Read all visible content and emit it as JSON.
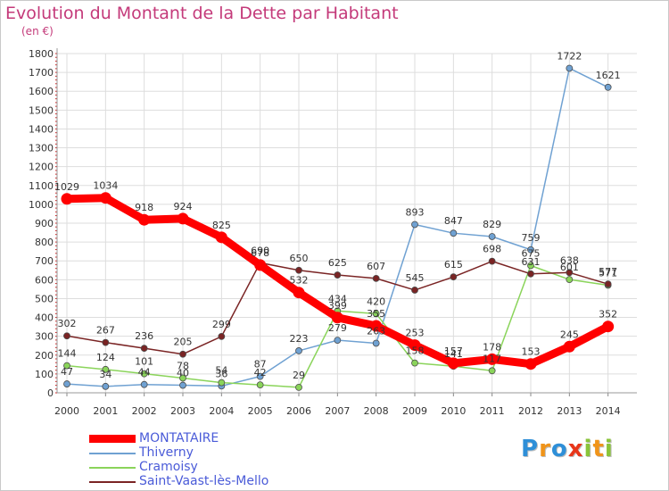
{
  "colors": {
    "title": "#c43a7a",
    "axis_text": "#333333",
    "grid": "#dddddd",
    "tick_minor": "#cc2222",
    "legend_text": "#4a5bd8"
  },
  "chart_data": {
    "type": "line",
    "title": "Evolution du Montant de la Dette par Habitant",
    "subtitle": "(en €)",
    "xlabel": "",
    "ylabel": "",
    "x": [
      "2000",
      "2001",
      "2002",
      "2003",
      "2004",
      "2005",
      "2006",
      "2007",
      "2008",
      "2009",
      "2010",
      "2011",
      "2012",
      "2013",
      "2014"
    ],
    "ylim": [
      0,
      1800
    ],
    "y_ticks": [
      0,
      100,
      200,
      300,
      400,
      500,
      600,
      700,
      800,
      900,
      1000,
      1100,
      1200,
      1300,
      1400,
      1500,
      1600,
      1700,
      1800
    ],
    "grid": true,
    "legend_position": "bottom-left",
    "series": [
      {
        "name": "MONTATAIRE",
        "color": "#ff0000",
        "values": [
          1029,
          1034,
          918,
          924,
          825,
          678,
          532,
          399,
          355,
          253,
          157,
          178,
          153,
          245,
          352
        ],
        "labels": [
          "1029",
          "1034",
          "918",
          "924",
          "825",
          "678",
          "532",
          "399",
          "355",
          "253",
          "157",
          "178",
          "153",
          "245",
          "352"
        ]
      },
      {
        "name": "Thiverny",
        "color": "#6fa1d2",
        "values": [
          47,
          34,
          44,
          40,
          36,
          87,
          223,
          279,
          263,
          893,
          847,
          829,
          759,
          1722,
          1621
        ],
        "labels": [
          "47",
          "34",
          "44",
          "40",
          "36",
          "87",
          "223",
          "279",
          "263",
          "893",
          "847",
          "829",
          "759",
          "1722",
          "1621"
        ]
      },
      {
        "name": "Cramoisy",
        "color": "#8ad45a",
        "values": [
          144,
          124,
          101,
          78,
          54,
          42,
          29,
          434,
          420,
          158,
          141,
          117,
          675,
          601,
          571
        ],
        "labels": [
          "144",
          "124",
          "101",
          "78",
          "54",
          "42",
          "29",
          "434",
          "420",
          "158",
          "141",
          "117",
          "675",
          "601",
          "571"
        ]
      },
      {
        "name": "Saint-Vaast-lès-Mello",
        "color": "#7a2424",
        "values": [
          302,
          267,
          236,
          205,
          299,
          690,
          650,
          625,
          607,
          545,
          615,
          698,
          631,
          638,
          577
        ],
        "labels": [
          "302",
          "267",
          "236",
          "205",
          "299",
          "690",
          "650",
          "625",
          "607",
          "545",
          "615",
          "698",
          "631",
          "638",
          "577"
        ]
      }
    ]
  },
  "brand": {
    "letters": [
      {
        "ch": "P",
        "color": "#2e8fd8"
      },
      {
        "ch": "r",
        "color": "#f0941a"
      },
      {
        "ch": "o",
        "color": "#2e8fd8"
      },
      {
        "ch": "x",
        "color": "#e8361a"
      },
      {
        "ch": "i",
        "color": "#8ac43a"
      },
      {
        "ch": "t",
        "color": "#f0941a"
      },
      {
        "ch": "i",
        "color": "#8ac43a"
      }
    ]
  }
}
